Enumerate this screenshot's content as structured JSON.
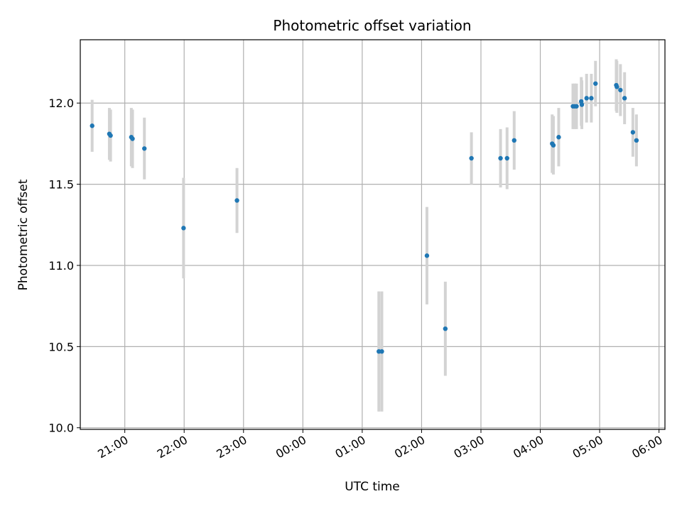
{
  "chart_data": {
    "type": "scatter",
    "title": "Photometric offset variation",
    "xlabel": "UTC time",
    "ylabel": "Photometric offset",
    "x_unit": "UTC hours (continuing past midnight)",
    "xlim": [
      20.25,
      30.1
    ],
    "ylim": [
      9.99,
      12.39
    ],
    "x_ticks": [
      {
        "value": 21,
        "label": "21:00"
      },
      {
        "value": 22,
        "label": "22:00"
      },
      {
        "value": 23,
        "label": "23:00"
      },
      {
        "value": 24,
        "label": "00:00"
      },
      {
        "value": 25,
        "label": "01:00"
      },
      {
        "value": 26,
        "label": "02:00"
      },
      {
        "value": 27,
        "label": "03:00"
      },
      {
        "value": 28,
        "label": "04:00"
      },
      {
        "value": 29,
        "label": "05:00"
      },
      {
        "value": 30,
        "label": "06:00"
      }
    ],
    "y_ticks": [
      {
        "value": 10.0,
        "label": "10.0"
      },
      {
        "value": 10.5,
        "label": "10.5"
      },
      {
        "value": 11.0,
        "label": "11.0"
      },
      {
        "value": 11.5,
        "label": "11.5"
      },
      {
        "value": 12.0,
        "label": "12.0"
      }
    ],
    "grid": true,
    "colors": {
      "point": "#1f77b4",
      "errorbar": "#d3d3d3",
      "grid": "#b0b0b0"
    },
    "points": [
      {
        "x": 20.45,
        "y": 11.86,
        "err": 0.16
      },
      {
        "x": 20.74,
        "y": 11.81,
        "err": 0.16
      },
      {
        "x": 20.76,
        "y": 11.8,
        "err": 0.16
      },
      {
        "x": 21.11,
        "y": 11.79,
        "err": 0.18
      },
      {
        "x": 21.13,
        "y": 11.78,
        "err": 0.18
      },
      {
        "x": 21.33,
        "y": 11.72,
        "err": 0.19
      },
      {
        "x": 21.99,
        "y": 11.23,
        "err": 0.31
      },
      {
        "x": 22.89,
        "y": 11.4,
        "err": 0.2
      },
      {
        "x": 25.28,
        "y": 10.47,
        "err": 0.37
      },
      {
        "x": 25.33,
        "y": 10.47,
        "err": 0.37
      },
      {
        "x": 26.09,
        "y": 11.06,
        "err": 0.3
      },
      {
        "x": 26.4,
        "y": 10.61,
        "err": 0.29
      },
      {
        "x": 26.84,
        "y": 11.66,
        "err": 0.16
      },
      {
        "x": 27.33,
        "y": 11.66,
        "err": 0.18
      },
      {
        "x": 27.44,
        "y": 11.66,
        "err": 0.19
      },
      {
        "x": 27.56,
        "y": 11.77,
        "err": 0.18
      },
      {
        "x": 28.2,
        "y": 11.75,
        "err": 0.18
      },
      {
        "x": 28.22,
        "y": 11.74,
        "err": 0.18
      },
      {
        "x": 28.31,
        "y": 11.79,
        "err": 0.18
      },
      {
        "x": 28.55,
        "y": 11.98,
        "err": 0.14
      },
      {
        "x": 28.58,
        "y": 11.98,
        "err": 0.14
      },
      {
        "x": 28.61,
        "y": 11.98,
        "err": 0.14
      },
      {
        "x": 28.69,
        "y": 12.01,
        "err": 0.15
      },
      {
        "x": 28.7,
        "y": 11.99,
        "err": 0.15
      },
      {
        "x": 28.78,
        "y": 12.03,
        "err": 0.15
      },
      {
        "x": 28.86,
        "y": 12.03,
        "err": 0.15
      },
      {
        "x": 28.93,
        "y": 12.12,
        "err": 0.14
      },
      {
        "x": 29.28,
        "y": 12.11,
        "err": 0.16
      },
      {
        "x": 29.29,
        "y": 12.1,
        "err": 0.16
      },
      {
        "x": 29.35,
        "y": 12.08,
        "err": 0.16
      },
      {
        "x": 29.42,
        "y": 12.03,
        "err": 0.16
      },
      {
        "x": 29.56,
        "y": 11.82,
        "err": 0.15
      },
      {
        "x": 29.62,
        "y": 11.77,
        "err": 0.16
      }
    ]
  }
}
